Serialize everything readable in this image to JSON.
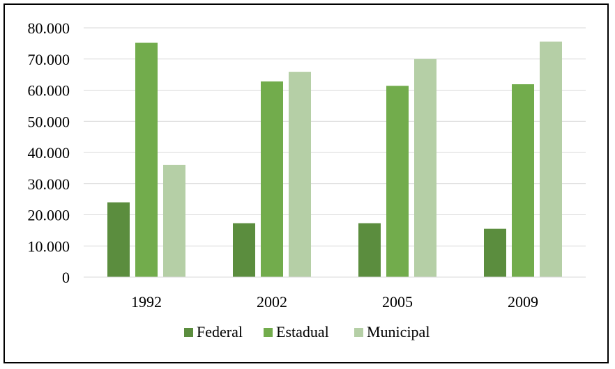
{
  "chart_data": {
    "type": "bar",
    "title": "",
    "xlabel": "",
    "ylabel": "",
    "categories": [
      "1992",
      "2002",
      "2005",
      "2009"
    ],
    "series": [
      {
        "name": "Federal",
        "color": "#5b8d3e",
        "values": [
          24000,
          17300,
          17300,
          15500
        ]
      },
      {
        "name": "Estadual",
        "color": "#72ac4c",
        "values": [
          75200,
          62800,
          61400,
          61900
        ]
      },
      {
        "name": "Municipal",
        "color": "#b5cfa6",
        "values": [
          36000,
          65900,
          70000,
          75600
        ]
      }
    ],
    "ylim": [
      0,
      80000
    ],
    "yticks": [
      0,
      10000,
      20000,
      30000,
      40000,
      50000,
      60000,
      70000,
      80000
    ],
    "ytick_labels": [
      "0",
      "10.000",
      "20.000",
      "30.000",
      "40.000",
      "50.000",
      "60.000",
      "70.000",
      "80.000"
    ],
    "grid": true,
    "legend_position": "bottom"
  }
}
